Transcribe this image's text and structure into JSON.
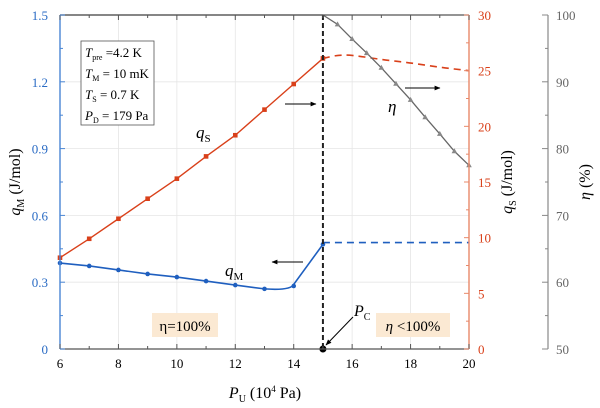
{
  "chart_data": {
    "type": "line",
    "xlabel": {
      "main": "P",
      "sub": "U",
      "rest": " (10",
      "sup": "4",
      "end": " Pa)"
    },
    "ylabel_left": {
      "main": "q",
      "sub": "M",
      "rest": " (J/mol)"
    },
    "ylabel_right": {
      "main": "q",
      "sub": "S",
      "rest": " (J/mol)"
    },
    "ylabel_right2": {
      "main": "η",
      "rest": " (%)"
    },
    "xlim": [
      6,
      20
    ],
    "ylim_left": [
      0,
      1.5
    ],
    "ylim_right": [
      0,
      30
    ],
    "ylim_right2": [
      50,
      100
    ],
    "xticks": [
      "6",
      "8",
      "10",
      "12",
      "14",
      "16",
      "18",
      "20"
    ],
    "yticks_left": [
      "0",
      "0.3",
      "0.6",
      "0.9",
      "1.2",
      "1.5"
    ],
    "yticks_right": [
      "0",
      "5",
      "10",
      "15",
      "20",
      "25",
      "30"
    ],
    "yticks_right2": [
      "50",
      "60",
      "70",
      "80",
      "90",
      "100"
    ],
    "grid": true,
    "colors": {
      "qM": "#1f5fbf",
      "qS": "#d9401a",
      "eta": "#666666",
      "left_axis": "#4a86d4",
      "right_axis": "#e8896a",
      "right2_axis": "#888888",
      "left_tick_text": "#2a6bc4",
      "right_tick_text": "#d9401a",
      "right2_tick_text": "#666666",
      "box_fill": "#fbe9d3"
    },
    "series": [
      {
        "name": "qM",
        "label": "q",
        "label_sub": "M",
        "axis": "left",
        "x": [
          6,
          7,
          8,
          9,
          10,
          11,
          12,
          13,
          14,
          15
        ],
        "y": [
          0.386,
          0.373,
          0.355,
          0.337,
          0.323,
          0.305,
          0.287,
          0.27,
          0.283,
          0.47
        ],
        "dashed_x": [
          15,
          20
        ],
        "dashed_y": [
          0.478,
          0.478
        ]
      },
      {
        "name": "qS",
        "label": "q",
        "label_sub": "S",
        "axis": "right",
        "x": [
          6,
          7,
          8,
          9,
          10,
          11,
          12,
          13,
          14,
          15
        ],
        "y": [
          8.2,
          9.9,
          11.7,
          13.5,
          15.3,
          17.3,
          19.2,
          21.5,
          23.8,
          26.1
        ],
        "dashed_x": [
          15,
          15.5,
          16,
          17,
          18,
          19,
          20
        ],
        "dashed_y": [
          26.1,
          26.4,
          26.4,
          26.0,
          25.7,
          25.3,
          25.0
        ]
      },
      {
        "name": "eta",
        "label": "η",
        "axis": "right2",
        "x": [
          6,
          15,
          15.5,
          16,
          16.5,
          17,
          17.5,
          18,
          18.5,
          19,
          19.5,
          20
        ],
        "y": [
          100,
          100,
          98.6,
          96.4,
          94.3,
          92.1,
          89.7,
          87.3,
          84.7,
          82.2,
          79.6,
          77.5
        ],
        "markers_from_index": 2
      }
    ],
    "annotations": {
      "params": [
        {
          "main": "T",
          "sub": "pre",
          "rest": " =4.2 K"
        },
        {
          "main": "T",
          "sub": "M",
          "rest": " = 10 mK"
        },
        {
          "main": "T",
          "sub": "S",
          "rest": " = 0.7 K"
        },
        {
          "main": "P",
          "sub": "D",
          "rest": " = 179 Pa"
        }
      ],
      "pc": {
        "main": "P",
        "sub": "C",
        "x": 15
      },
      "eta_full": "η=100%",
      "eta_partial_main": "η",
      "eta_partial_rest": " <100%"
    }
  }
}
